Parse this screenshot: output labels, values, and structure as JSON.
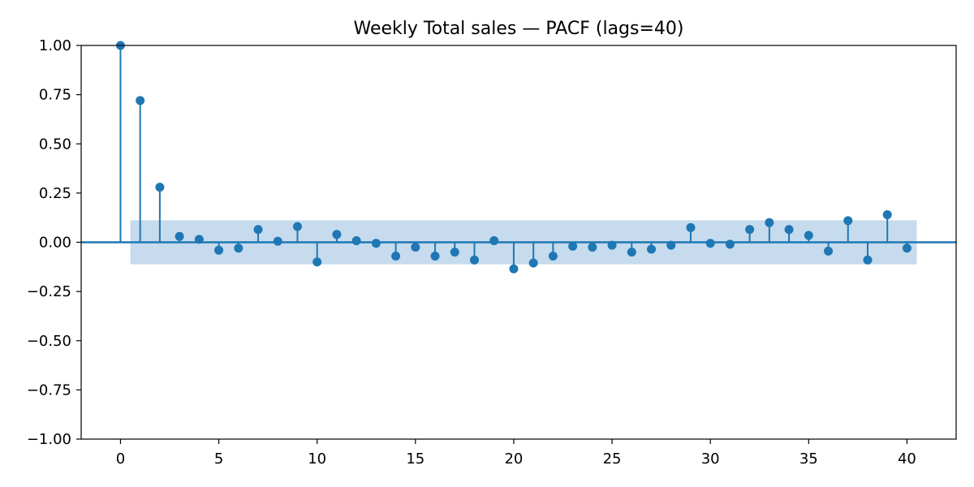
{
  "chart_data": {
    "type": "stem",
    "title": "Weekly Total sales — PACF (lags=40)",
    "xlabel": "",
    "ylabel": "",
    "xlim": [
      -2,
      42.5
    ],
    "ylim": [
      -1.0,
      1.0
    ],
    "x_ticks": [
      0,
      5,
      10,
      15,
      20,
      25,
      30,
      35,
      40
    ],
    "y_ticks": [
      1.0,
      0.75,
      0.5,
      0.25,
      0.0,
      -0.25,
      -0.5,
      -0.75,
      -1.0
    ],
    "x_tick_labels": [
      "0",
      "5",
      "10",
      "15",
      "20",
      "25",
      "30",
      "35",
      "40"
    ],
    "y_tick_labels": [
      "1.00",
      "0.75",
      "0.50",
      "0.25",
      "0.00",
      "−0.25",
      "−0.50",
      "−0.75",
      "−1.00"
    ],
    "confidence_band": {
      "x_range": [
        0.5,
        40.5
      ],
      "lower": -0.112,
      "upper": 0.112
    },
    "grid": false,
    "colors": {
      "stem": "#1f77b4",
      "band": "#c6dbed",
      "zero_line": "#1f77b4"
    },
    "lags": [
      0,
      1,
      2,
      3,
      4,
      5,
      6,
      7,
      8,
      9,
      10,
      11,
      12,
      13,
      14,
      15,
      16,
      17,
      18,
      19,
      20,
      21,
      22,
      23,
      24,
      25,
      26,
      27,
      28,
      29,
      30,
      31,
      32,
      33,
      34,
      35,
      36,
      37,
      38,
      39,
      40
    ],
    "values": [
      1.0,
      0.72,
      0.28,
      0.03,
      0.015,
      -0.04,
      -0.03,
      0.065,
      0.005,
      0.08,
      -0.1,
      0.04,
      0.008,
      -0.005,
      -0.07,
      -0.025,
      -0.07,
      -0.05,
      -0.09,
      0.008,
      -0.135,
      -0.105,
      -0.07,
      -0.02,
      -0.025,
      -0.015,
      -0.05,
      -0.035,
      -0.015,
      0.075,
      -0.005,
      -0.01,
      0.065,
      0.1,
      0.065,
      0.035,
      -0.045,
      0.11,
      -0.09,
      0.14,
      -0.03
    ]
  }
}
